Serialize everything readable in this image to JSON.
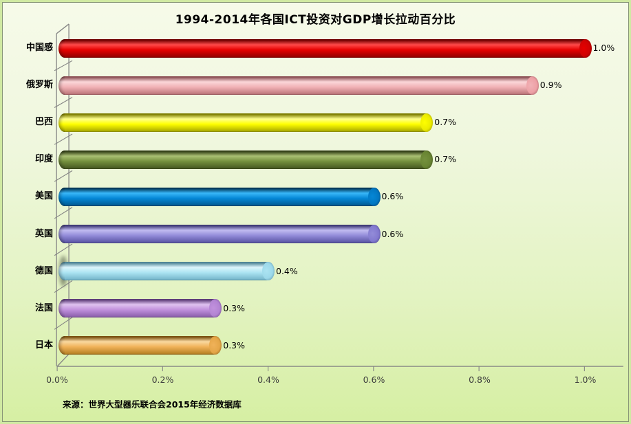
{
  "title": "1994-2014年各国ICT投资对GDP增长拉动百分比",
  "source_note": "来源：世界大型器乐联合会2015年经济数据库",
  "chart_data": {
    "type": "bar",
    "style": "3d-cylinder",
    "orientation": "horizontal",
    "title": "1994-2014年各国ICT投资对GDP增长拉动百分比",
    "categories": [
      "中国感",
      "俄罗斯",
      "巴西",
      "印度",
      "美国",
      "英国",
      "德国",
      "法国",
      "日本"
    ],
    "values": [
      1.0,
      0.9,
      0.7,
      0.7,
      0.6,
      0.6,
      0.4,
      0.3,
      0.3
    ],
    "value_labels": [
      "1.0%",
      "0.9%",
      "0.7%",
      "0.7%",
      "0.6%",
      "0.6%",
      "0.4%",
      "0.3%",
      "0.3%"
    ],
    "x_ticks": [
      "0.0%",
      "0.2%",
      "0.4%",
      "0.6%",
      "0.8%",
      "1.0%"
    ],
    "x_tick_values": [
      0.0,
      0.2,
      0.4,
      0.6,
      0.8,
      1.0
    ],
    "xlim": [
      0.0,
      1.0
    ],
    "unit": "%",
    "grid": false,
    "legend": false,
    "source": "来源：世界大型器乐联合会2015年经济数据库",
    "background_gradient": {
      "top": "#f6fae9",
      "bottom": "#d6efa3"
    },
    "frame_color": "#848484",
    "bar_colors": [
      {
        "name": "red",
        "edge": "#6f0000",
        "light": "#ff4a4a",
        "base": "#e60000",
        "dark": "#9a0000",
        "cap": "#cf0202"
      },
      {
        "name": "pink",
        "edge": "#8d5156",
        "light": "#fbd7d9",
        "base": "#f1b2b6",
        "dark": "#c17a7e",
        "cap": "#eda0a5"
      },
      {
        "name": "yellow",
        "edge": "#7e7e00",
        "light": "#ffff8c",
        "base": "#ffff00",
        "dark": "#b0b000",
        "cap": "#ebeb00"
      },
      {
        "name": "olive",
        "edge": "#333f16",
        "light": "#a9c073",
        "base": "#75913e",
        "dark": "#4a5d24",
        "cap": "#688432"
      },
      {
        "name": "blue",
        "edge": "#003658",
        "light": "#38b6f8",
        "base": "#0487d6",
        "dark": "#025d96",
        "cap": "#0277c2"
      },
      {
        "name": "purple",
        "edge": "#3f3a77",
        "light": "#c0bbf0",
        "base": "#938cd9",
        "dark": "#5e58a8",
        "cap": "#8279cf"
      },
      {
        "name": "cyan",
        "edge": "#4f8496",
        "light": "#dcf5fc",
        "base": "#ace4f2",
        "dark": "#79b9cd",
        "cap": "#9cd9ea"
      },
      {
        "name": "orchid",
        "edge": "#5e3d7a",
        "light": "#e0c3f0",
        "base": "#c191dd",
        "dark": "#8f62af",
        "cap": "#b384d3"
      },
      {
        "name": "orange",
        "edge": "#7c5313",
        "light": "#fad9a0",
        "base": "#f0b259",
        "dark": "#bb8327",
        "cap": "#e5a648"
      }
    ]
  }
}
